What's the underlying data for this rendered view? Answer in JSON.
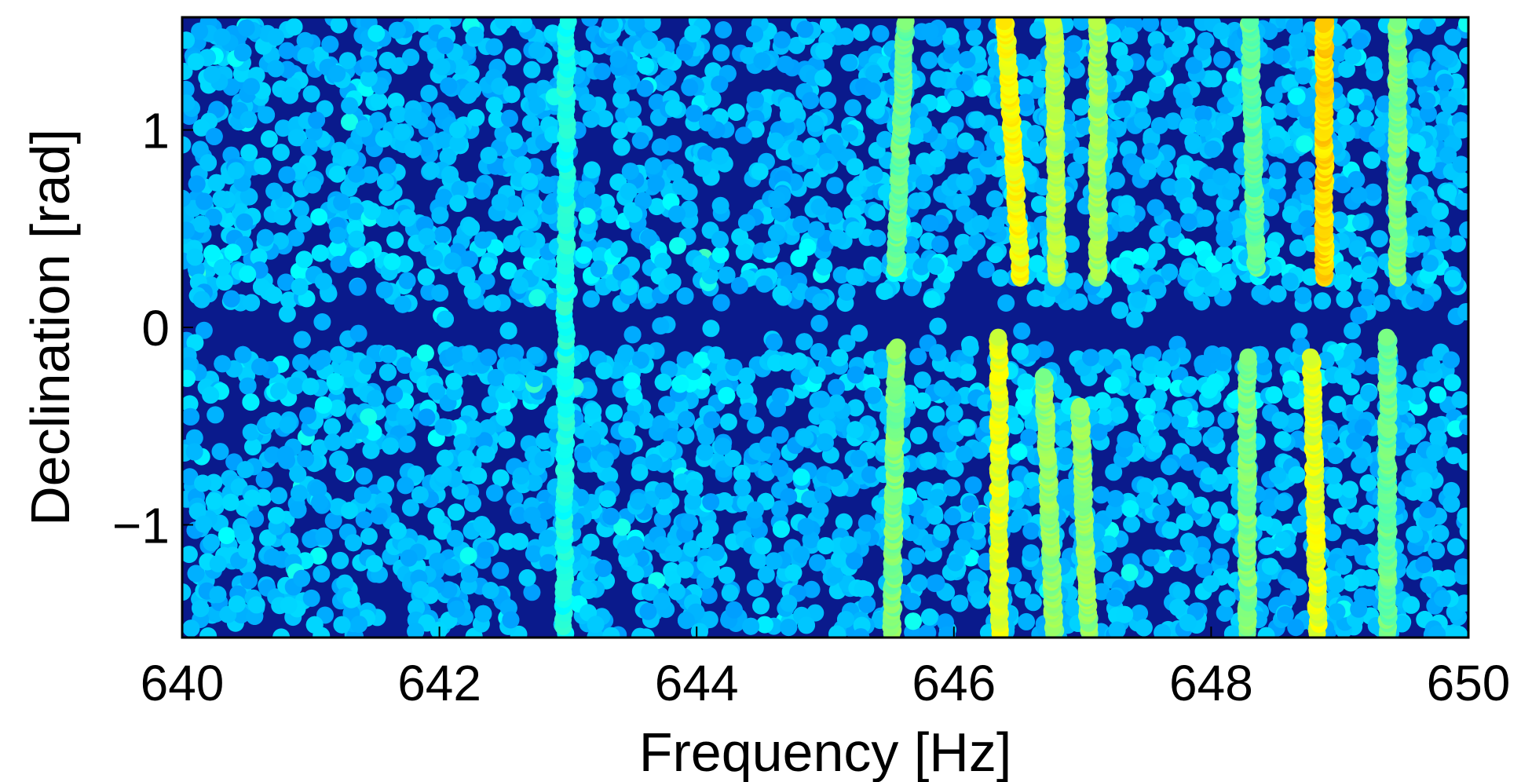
{
  "chart_data": {
    "type": "scatter",
    "title": "",
    "xlabel": "Frequency [Hz]",
    "ylabel": "Declination [rad]",
    "xlim": [
      640,
      650
    ],
    "ylim": [
      -1.5708,
      1.5708
    ],
    "xticks": [
      640,
      642,
      644,
      646,
      648,
      650
    ],
    "xtick_labels": [
      "640",
      "642",
      "644",
      "646",
      "648",
      "650"
    ],
    "yticks": [
      -1,
      0,
      1
    ],
    "ytick_labels": [
      "−1",
      "0",
      "1"
    ],
    "grid": false,
    "legend": "none",
    "colormap": "jet",
    "background_points": {
      "description_note": "dense field of markers filling the frequency band, mostly medium-blue, sparser band near declination 0",
      "color_values": [
        0.28,
        0.34
      ]
    },
    "bright_lines": [
      {
        "f_top": 642.99,
        "f_bottom": 642.97,
        "dec_range": [
          -1.55,
          1.55
        ],
        "level": 0.4
      },
      {
        "f_top": 645.62,
        "f_bottom": 645.55,
        "dec_range": [
          0.3,
          1.55
        ],
        "level": 0.48
      },
      {
        "f_top": 645.55,
        "f_bottom": 645.52,
        "dec_range": [
          -1.55,
          -0.1
        ],
        "level": 0.5
      },
      {
        "f_top": 646.4,
        "f_bottom": 646.52,
        "dec_range": [
          0.25,
          1.55
        ],
        "level": 0.62
      },
      {
        "f_top": 646.35,
        "f_bottom": 646.35,
        "dec_range": [
          -1.55,
          -0.05
        ],
        "level": 0.6
      },
      {
        "f_top": 646.78,
        "f_bottom": 646.8,
        "dec_range": [
          0.25,
          1.55
        ],
        "level": 0.55
      },
      {
        "f_top": 646.7,
        "f_bottom": 646.78,
        "dec_range": [
          -1.55,
          -0.25
        ],
        "level": 0.52
      },
      {
        "f_top": 647.12,
        "f_bottom": 647.12,
        "dec_range": [
          0.25,
          1.55
        ],
        "level": 0.53
      },
      {
        "f_top": 646.98,
        "f_bottom": 647.05,
        "dec_range": [
          -1.55,
          -0.4
        ],
        "level": 0.52
      },
      {
        "f_top": 648.3,
        "f_bottom": 648.35,
        "dec_range": [
          0.3,
          1.55
        ],
        "level": 0.47
      },
      {
        "f_top": 648.28,
        "f_bottom": 648.28,
        "dec_range": [
          -1.55,
          -0.15
        ],
        "level": 0.5
      },
      {
        "f_top": 648.88,
        "f_bottom": 648.88,
        "dec_range": [
          0.25,
          1.55
        ],
        "level": 0.66
      },
      {
        "f_top": 648.78,
        "f_bottom": 648.83,
        "dec_range": [
          -1.55,
          -0.15
        ],
        "level": 0.6
      },
      {
        "f_top": 649.45,
        "f_bottom": 649.45,
        "dec_range": [
          0.25,
          1.55
        ],
        "level": 0.5
      },
      {
        "f_top": 649.37,
        "f_bottom": 649.37,
        "dec_range": [
          -1.55,
          -0.05
        ],
        "level": 0.48
      }
    ],
    "background_color": "#0a1a8c",
    "frame_color": "#000000"
  }
}
